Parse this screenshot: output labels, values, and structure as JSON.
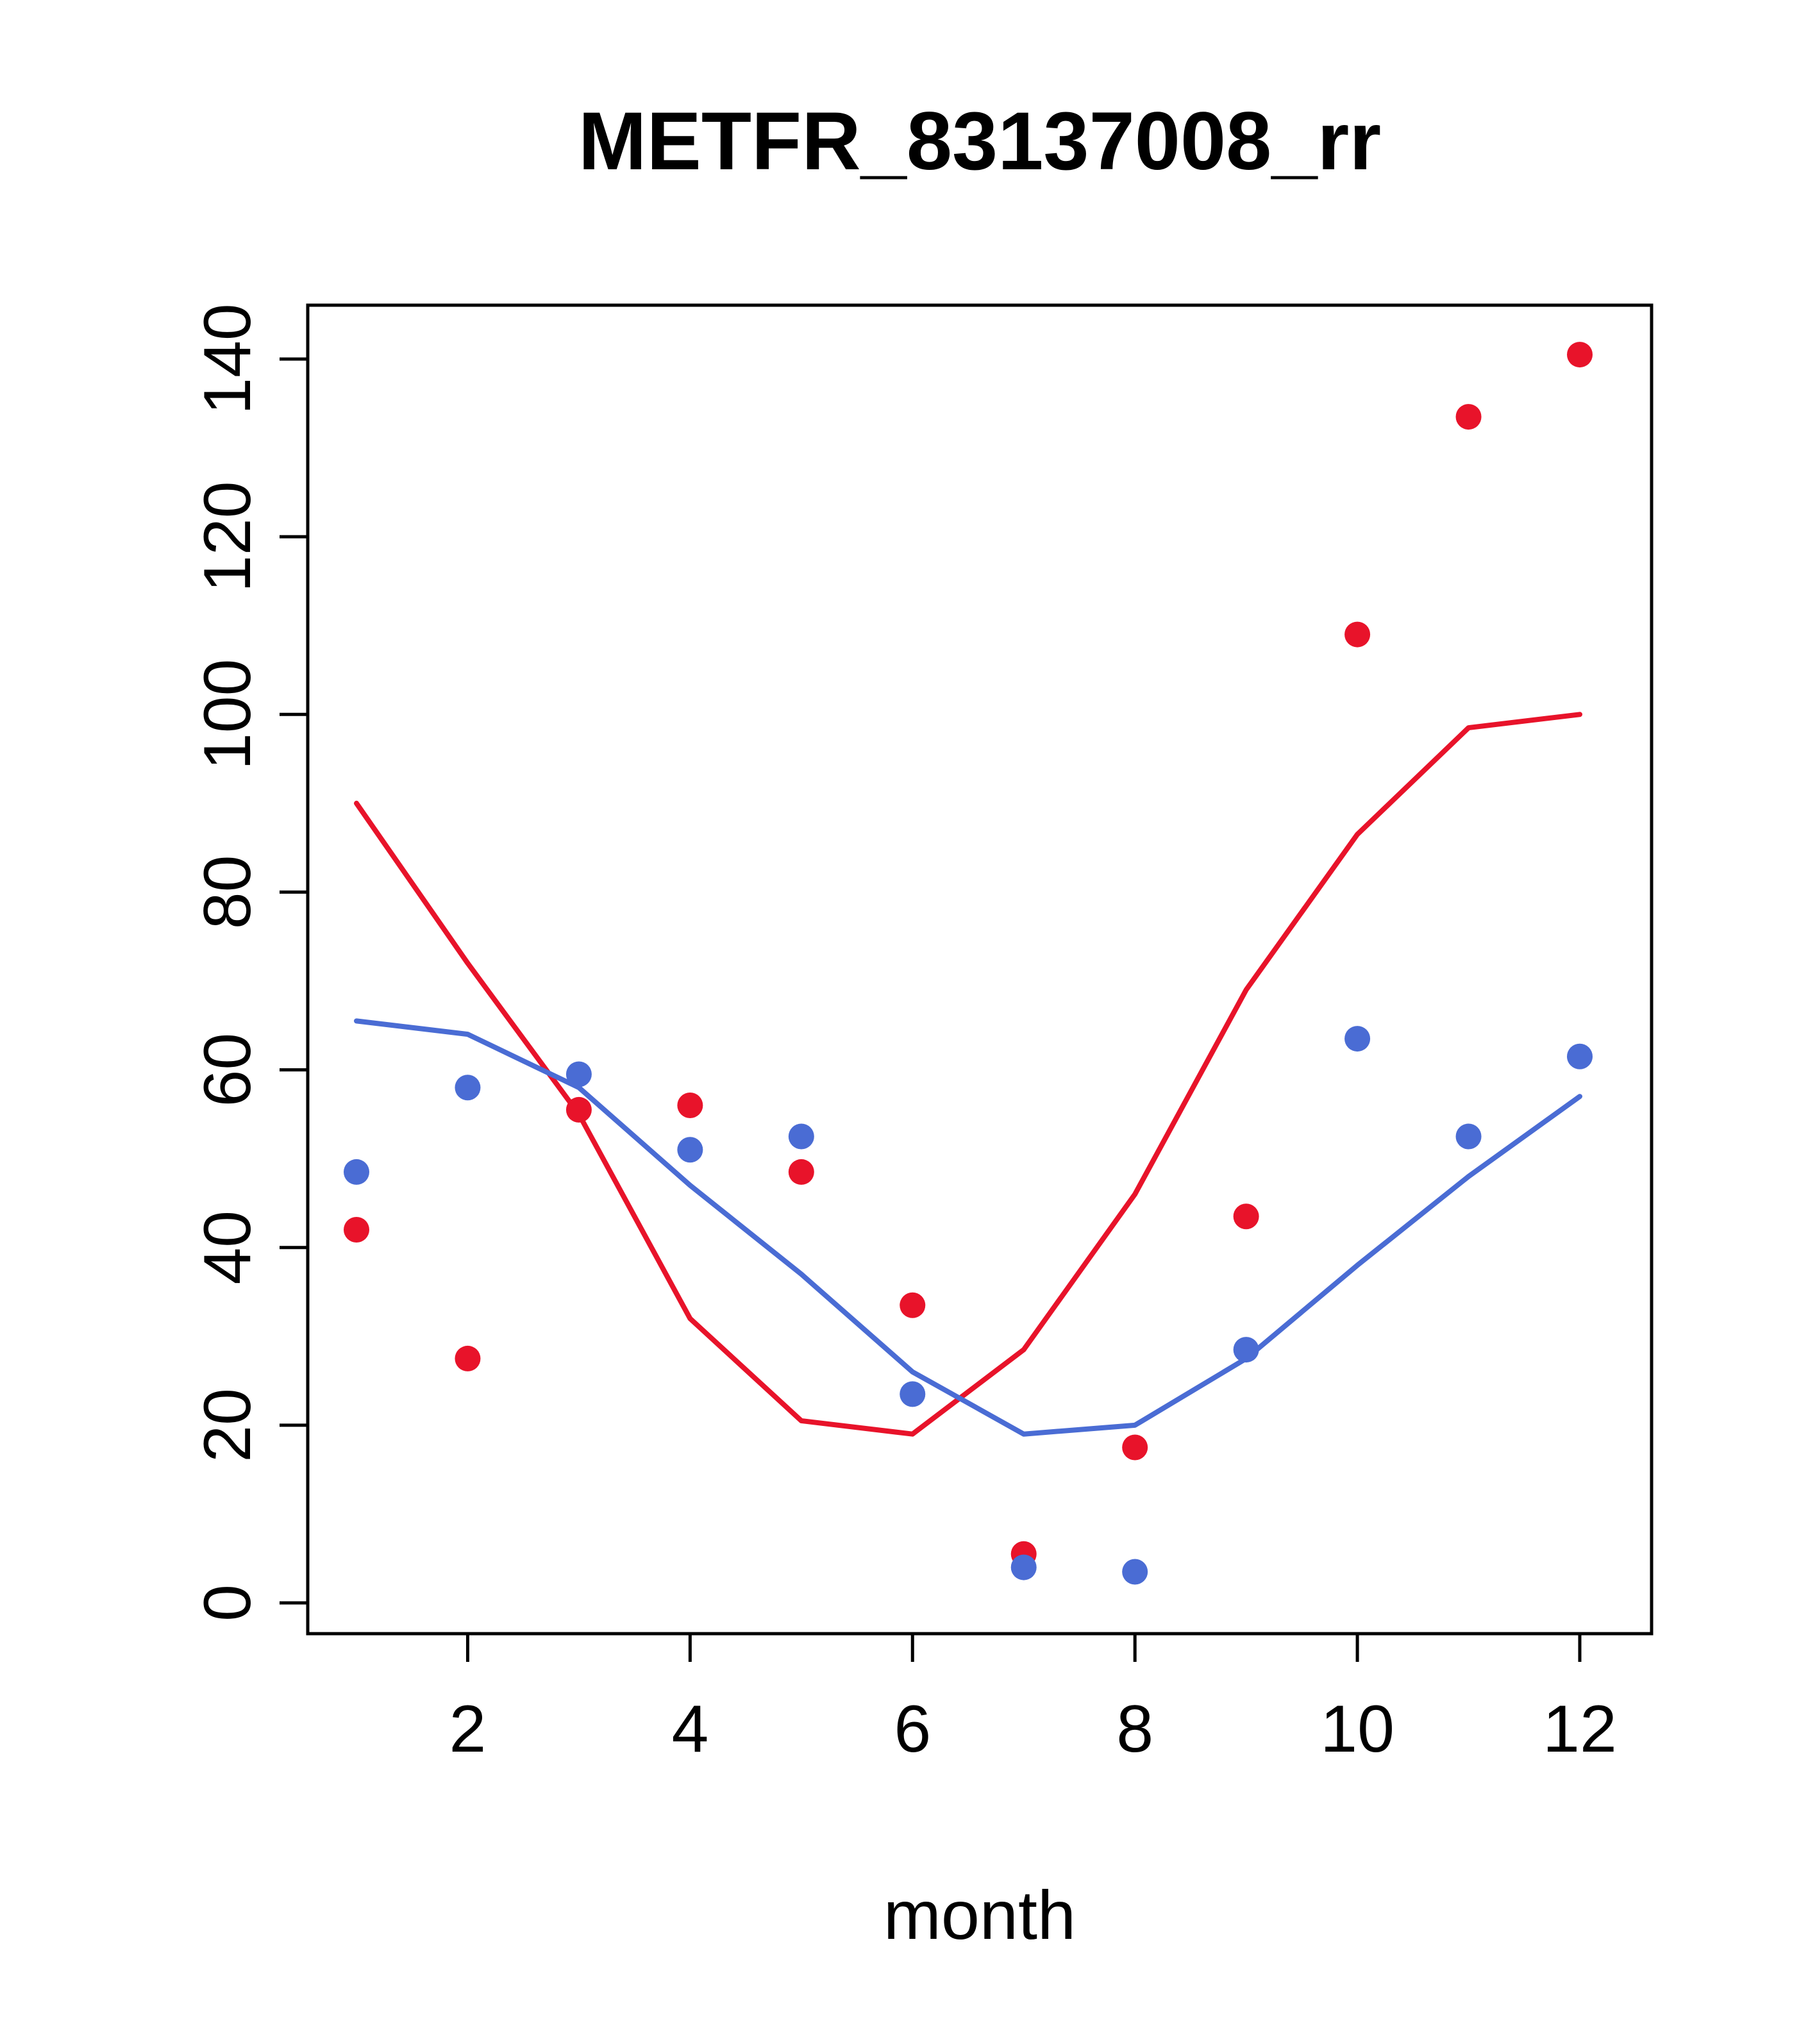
{
  "chart_data": {
    "type": "scatter",
    "title": "METFR_83137008_rr",
    "xlabel": "month",
    "ylabel": "",
    "x": [
      1,
      2,
      3,
      4,
      5,
      6,
      7,
      8,
      9,
      10,
      11,
      12
    ],
    "xticks": [
      2,
      4,
      6,
      8,
      10,
      12
    ],
    "yticks": [
      0,
      20,
      40,
      60,
      80,
      100,
      120,
      140
    ],
    "xlim": [
      0.5,
      12.5
    ],
    "ylim": [
      0,
      145
    ],
    "grid": false,
    "legend": "none",
    "colors": {
      "red": "#e8132a",
      "blue": "#4a6cd4",
      "axis": "#000000"
    },
    "series": [
      {
        "name": "red-points",
        "kind": "points",
        "color": "#e8132a",
        "values": [
          42,
          27.5,
          55.5,
          56,
          48.5,
          33.5,
          5.5,
          17.5,
          43.5,
          109,
          133.5,
          140.5
        ]
      },
      {
        "name": "blue-points",
        "kind": "points",
        "color": "#4a6cd4",
        "values": [
          48.5,
          58,
          59.5,
          51,
          52.5,
          23.5,
          4,
          3.5,
          28.5,
          63.5,
          52.5,
          61.5
        ]
      },
      {
        "name": "red-line",
        "kind": "line",
        "color": "#e8132a",
        "values": [
          90,
          72,
          55,
          32,
          20.5,
          19,
          28.5,
          46,
          69,
          86.5,
          98.5,
          100
        ]
      },
      {
        "name": "blue-line",
        "kind": "line",
        "color": "#4a6cd4",
        "values": [
          65.5,
          64,
          58,
          47,
          37,
          26,
          19,
          20,
          27.5,
          38,
          48,
          57
        ]
      }
    ]
  }
}
